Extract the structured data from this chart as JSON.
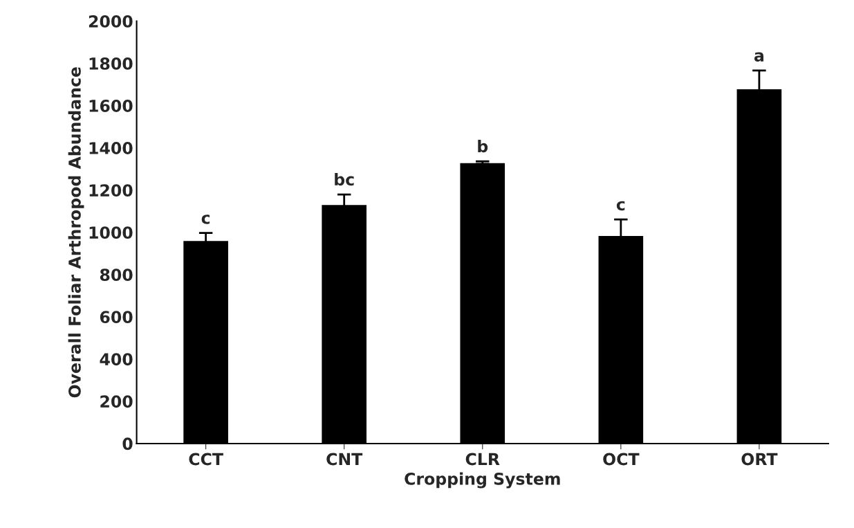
{
  "chart_data": {
    "type": "bar",
    "xlabel": "Cropping System",
    "ylabel": "Overall Foliar Arthropod Abundance",
    "categories": [
      "CCT",
      "CNT",
      "CLR",
      "OCT",
      "ORT"
    ],
    "values": [
      961,
      1132,
      1330,
      985,
      1680
    ],
    "errors": [
      36,
      47,
      6,
      76,
      86
    ],
    "color": "#000000",
    "ylim": [
      0,
      2000
    ],
    "yticks": [
      0,
      200,
      400,
      600,
      800,
      1000,
      1200,
      1400,
      1600,
      1800,
      2000
    ],
    "grid": false,
    "annotations": [
      "c",
      "bc",
      "b",
      "c",
      "a"
    ]
  }
}
